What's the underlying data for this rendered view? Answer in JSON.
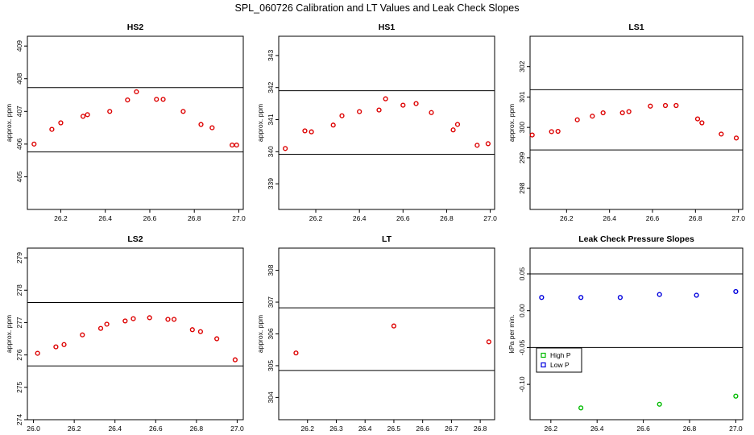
{
  "figure": {
    "title": "SPL_060726  Calibration and LT Values and Leak Check Slopes"
  },
  "chart_data": [
    {
      "type": "scatter",
      "title": "HS2",
      "ylabel": "approx. ppm",
      "xlim": [
        26.05,
        27.02
      ],
      "ylim": [
        404,
        409.3
      ],
      "xticks": [
        26.2,
        26.4,
        26.6,
        26.8,
        27.0
      ],
      "xtick_labels": [
        "26.2",
        "26.4",
        "26.6",
        "26.8",
        "27.0"
      ],
      "yticks": [
        405,
        406,
        407,
        408,
        409
      ],
      "ytick_labels": [
        "405",
        "406",
        "407",
        "408",
        "409"
      ],
      "hlines": [
        405.76,
        407.73
      ],
      "series": [
        {
          "color": "#dd0000",
          "x": [
            26.08,
            26.16,
            26.2,
            26.3,
            26.32,
            26.42,
            26.5,
            26.54,
            26.63,
            26.66,
            26.75,
            26.83,
            26.88,
            26.97,
            26.99
          ],
          "y": [
            406.0,
            406.45,
            406.65,
            406.85,
            406.9,
            407.0,
            407.35,
            407.6,
            407.37,
            407.37,
            407.0,
            406.6,
            406.5,
            405.97,
            405.97
          ]
        }
      ]
    },
    {
      "type": "scatter",
      "title": "HS1",
      "ylabel": "approx. ppm",
      "xlim": [
        26.03,
        27.02
      ],
      "ylim": [
        338.2,
        343.6
      ],
      "xticks": [
        26.2,
        26.4,
        26.6,
        26.8,
        27.0
      ],
      "xtick_labels": [
        "26.2",
        "26.4",
        "26.6",
        "26.8",
        "27.0"
      ],
      "yticks": [
        339,
        340,
        341,
        342,
        343
      ],
      "ytick_labels": [
        "339",
        "340",
        "341",
        "342",
        "343"
      ],
      "hlines": [
        339.92,
        341.9
      ],
      "series": [
        {
          "color": "#dd0000",
          "x": [
            26.06,
            26.15,
            26.18,
            26.28,
            26.32,
            26.4,
            26.49,
            26.52,
            26.6,
            26.66,
            26.73,
            26.83,
            26.85,
            26.94,
            26.99
          ],
          "y": [
            340.1,
            340.65,
            340.62,
            340.83,
            341.12,
            341.25,
            341.3,
            341.65,
            341.45,
            341.5,
            341.22,
            340.68,
            340.85,
            340.2,
            340.25
          ]
        }
      ]
    },
    {
      "type": "scatter",
      "title": "LS1",
      "ylabel": "approx. ppm",
      "xlim": [
        26.03,
        27.02
      ],
      "ylim": [
        297.3,
        303
      ],
      "xticks": [
        26.2,
        26.4,
        26.6,
        26.8,
        27.0
      ],
      "xtick_labels": [
        "26.2",
        "26.4",
        "26.6",
        "26.8",
        "27.0"
      ],
      "yticks": [
        298,
        299,
        300,
        301,
        302
      ],
      "ytick_labels": [
        "298",
        "299",
        "300",
        "301",
        "302"
      ],
      "hlines": [
        299.26,
        301.24
      ],
      "series": [
        {
          "color": "#dd0000",
          "x": [
            26.04,
            26.13,
            26.16,
            26.25,
            26.32,
            26.37,
            26.46,
            26.49,
            26.59,
            26.66,
            26.71,
            26.81,
            26.83,
            26.92,
            26.99
          ],
          "y": [
            299.75,
            299.86,
            299.87,
            300.25,
            300.37,
            300.48,
            300.48,
            300.52,
            300.7,
            300.72,
            300.72,
            300.28,
            300.15,
            299.78,
            299.65
          ]
        }
      ]
    },
    {
      "type": "scatter",
      "title": "LS2",
      "ylabel": "approx. ppm",
      "xlim": [
        25.97,
        27.03
      ],
      "ylim": [
        274,
        279.3
      ],
      "xticks": [
        26.0,
        26.2,
        26.4,
        26.6,
        26.8,
        27.0
      ],
      "xtick_labels": [
        "26.0",
        "26.2",
        "26.4",
        "26.6",
        "26.8",
        "27.0"
      ],
      "yticks": [
        274,
        275,
        276,
        277,
        278,
        279
      ],
      "ytick_labels": [
        "274",
        "275",
        "276",
        "277",
        "278",
        "279"
      ],
      "hlines": [
        275.66,
        277.62
      ],
      "series": [
        {
          "color": "#dd0000",
          "x": [
            26.02,
            26.11,
            26.15,
            26.24,
            26.33,
            26.36,
            26.45,
            26.49,
            26.57,
            26.66,
            26.69,
            26.78,
            26.82,
            26.9,
            26.99
          ],
          "y": [
            276.05,
            276.25,
            276.32,
            276.62,
            276.82,
            276.95,
            277.05,
            277.12,
            277.15,
            277.1,
            277.1,
            276.78,
            276.72,
            276.5,
            275.85
          ]
        }
      ]
    },
    {
      "type": "scatter",
      "title": "LT",
      "ylabel": "approx. ppm",
      "xlim": [
        26.1,
        26.85
      ],
      "ylim": [
        303.3,
        308.7
      ],
      "xticks": [
        26.2,
        26.3,
        26.4,
        26.5,
        26.6,
        26.7,
        26.8
      ],
      "xtick_labels": [
        "26.2",
        "26.3",
        "26.4",
        "26.5",
        "26.6",
        "26.7",
        "26.8"
      ],
      "yticks": [
        304,
        305,
        306,
        307,
        308
      ],
      "ytick_labels": [
        "304",
        "305",
        "306",
        "307",
        "308"
      ],
      "hlines": [
        304.85,
        306.82
      ],
      "series": [
        {
          "color": "#dd0000",
          "x": [
            26.16,
            26.5,
            26.83
          ],
          "y": [
            305.4,
            306.25,
            305.75
          ]
        }
      ]
    },
    {
      "type": "scatter",
      "title": "Leak Check Pressure Slopes",
      "ylabel": "kPa per min.",
      "xlim": [
        26.11,
        27.03
      ],
      "ylim": [
        -0.148,
        0.085
      ],
      "xticks": [
        26.2,
        26.4,
        26.6,
        26.8,
        27.0
      ],
      "xtick_labels": [
        "26.2",
        "26.4",
        "26.6",
        "26.8",
        "27.0"
      ],
      "yticks": [
        -0.1,
        -0.05,
        0.0,
        0.05
      ],
      "ytick_labels": [
        "-0.10",
        "-0.05",
        "0.00",
        "0.05"
      ],
      "hlines": [
        0.05,
        -0.05
      ],
      "legend_position": "middle-left",
      "series": [
        {
          "name": "High P",
          "color": "#00bb00",
          "x": [
            26.33,
            26.67,
            27.0
          ],
          "y": [
            -0.132,
            -0.127,
            -0.116
          ]
        },
        {
          "name": "Low P",
          "color": "#0000dd",
          "x": [
            26.16,
            26.33,
            26.5,
            26.67,
            26.83,
            27.0
          ],
          "y": [
            0.018,
            0.018,
            0.018,
            0.022,
            0.021,
            0.026
          ]
        }
      ]
    }
  ]
}
